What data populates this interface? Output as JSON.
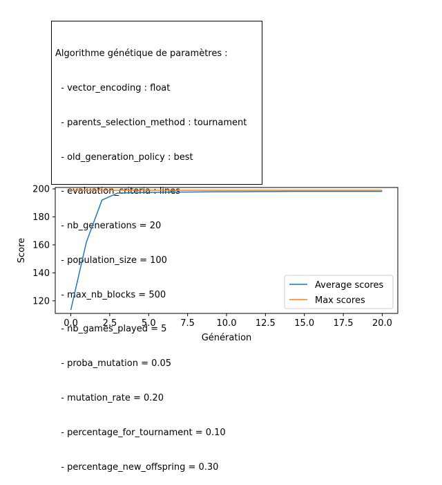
{
  "params": {
    "title": "Algorithme génétique de paramètres :",
    "lines": [
      "  - vector_encoding : float",
      "  - parents_selection_method : tournament",
      "  - old_generation_policy : best",
      "  - evaluation_criteria : lines",
      "  - nb_generations = 20",
      "  - population_size = 100",
      "  - max_nb_blocks = 500",
      "  - nb_games_played = 5",
      "  - proba_mutation = 0.05",
      "  - mutation_rate = 0.20",
      "  - percentage_for_tournament = 0.10",
      "  - percentage_new_offspring = 0.30"
    ]
  },
  "chart_data": {
    "type": "line",
    "xlabel": "Génération",
    "ylabel": "Score",
    "xlim": [
      -1.0,
      21.0
    ],
    "ylim": [
      111,
      201
    ],
    "xticks": [
      "0.0",
      "2.5",
      "5.0",
      "7.5",
      "10.0",
      "12.5",
      "15.0",
      "17.5",
      "20.0"
    ],
    "yticks": [
      "120",
      "140",
      "160",
      "180",
      "200"
    ],
    "x": [
      0,
      1,
      2,
      3,
      4,
      5,
      6,
      7,
      8,
      9,
      10,
      11,
      12,
      13,
      14,
      15,
      16,
      17,
      18,
      19,
      20
    ],
    "series": [
      {
        "name": "Average scores",
        "color": "#1f77b4",
        "values": [
          113.5,
          162,
          192,
          197,
          197.3,
          197.5,
          197.6,
          197.7,
          197.8,
          197.9,
          198,
          198,
          198.1,
          198.1,
          198.2,
          198.2,
          198.2,
          198.2,
          198.2,
          198.2,
          198.2
        ]
      },
      {
        "name": "Max scores",
        "color": "#ff7f0e",
        "values": [
          199,
          199,
          199,
          199,
          199,
          199,
          199,
          199,
          199,
          199,
          199,
          199,
          199,
          199,
          199,
          199,
          199,
          199,
          199,
          199,
          199
        ]
      }
    ],
    "grid": false,
    "legend": "lower-right"
  }
}
